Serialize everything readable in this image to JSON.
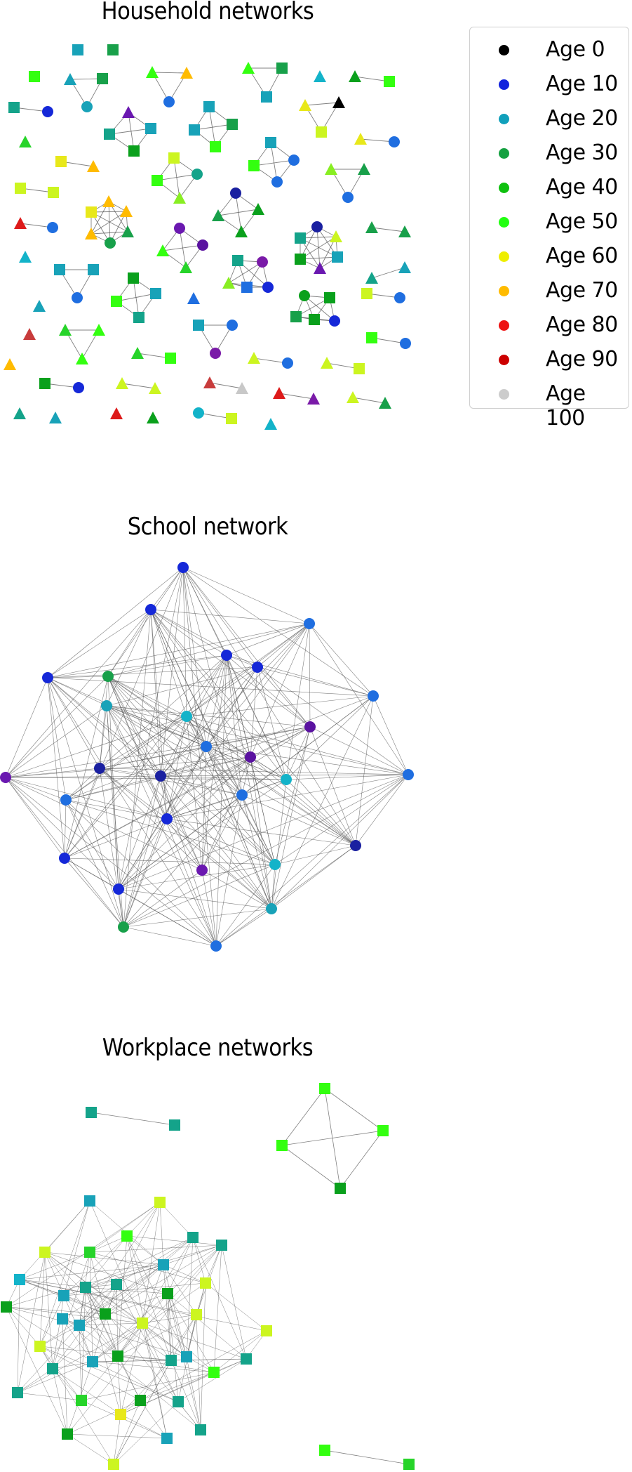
{
  "titles": {
    "household": "Household networks",
    "school": "School network",
    "workplace": "Workplace networks"
  },
  "legend": [
    {
      "label": "Age 0",
      "color": "#000000"
    },
    {
      "label": "Age 10",
      "color": "#1122dd"
    },
    {
      "label": "Age 20",
      "color": "#11a0bb"
    },
    {
      "label": "Age 30",
      "color": "#14a040"
    },
    {
      "label": "Age 40",
      "color": "#0fc00f"
    },
    {
      "label": "Age 50",
      "color": "#22ff11"
    },
    {
      "label": "Age 60",
      "color": "#eeee00"
    },
    {
      "label": "Age 70",
      "color": "#ffbb00"
    },
    {
      "label": "Age 80",
      "color": "#ee1111"
    },
    {
      "label": "Age 90",
      "color": "#cc0000"
    },
    {
      "label": "Age 100",
      "color": "#cccccc"
    }
  ]
}
